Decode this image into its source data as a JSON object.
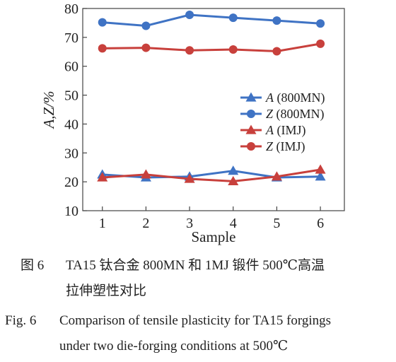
{
  "chart_data": {
    "type": "line",
    "xlabel": "Sample",
    "ylabel": "A,Z/%",
    "x": [
      1,
      2,
      3,
      4,
      5,
      6
    ],
    "xlim": [
      0.55,
      6.55
    ],
    "ylim": [
      10,
      80
    ],
    "yticks": [
      10,
      20,
      30,
      40,
      50,
      60,
      70,
      80
    ],
    "xticks": [
      1,
      2,
      3,
      4,
      5,
      6
    ],
    "grid": false,
    "legend_position": "center-right",
    "series": [
      {
        "name": "A (800MN)",
        "name_var": "A",
        "name_rest": " (800MN)",
        "color": "#3f73c4",
        "marker": "triangle",
        "values": [
          22.5,
          21.5,
          21.8,
          23.8,
          21.5,
          21.8
        ]
      },
      {
        "name": "Z (800MN)",
        "name_var": "Z",
        "name_rest": " (800MN)",
        "color": "#3f73c4",
        "marker": "circle",
        "values": [
          75.2,
          74.0,
          77.8,
          76.8,
          75.8,
          74.8
        ]
      },
      {
        "name": "A (IMJ)",
        "name_var": "A",
        "name_rest": " (IMJ)",
        "color": "#c8403c",
        "marker": "triangle",
        "values": [
          21.5,
          22.5,
          21.0,
          20.2,
          21.8,
          24.2
        ]
      },
      {
        "name": "Z (IMJ)",
        "name_var": "Z",
        "name_rest": " (IMJ)",
        "color": "#c8403c",
        "marker": "circle",
        "values": [
          66.2,
          66.4,
          65.5,
          65.8,
          65.2,
          67.8
        ]
      }
    ]
  },
  "caption": {
    "cn_label": "图 6",
    "cn_line1": "TA15 钛合金 800MN 和 1MJ 锻件 500℃高温",
    "cn_line2": "拉伸塑性对比",
    "en_label": "Fig. 6",
    "en_line1": "Comparison of tensile plasticity for TA15 forgings",
    "en_line2": "under two die-forging conditions at 500℃"
  }
}
